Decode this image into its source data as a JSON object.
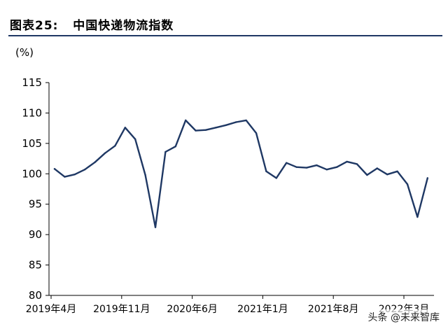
{
  "header": {
    "title": "图表25:   中国快递物流指数"
  },
  "watermark": "头条 @未来智库",
  "chart_data": {
    "type": "line",
    "title": "中国快递物流指数",
    "ylabel": "(%)",
    "xlabel": "",
    "ylim": [
      80,
      115
    ],
    "yticks": [
      80,
      85,
      90,
      95,
      100,
      105,
      110,
      115
    ],
    "grid": false,
    "legend": "none",
    "x_tick_labels": [
      "2019年4月",
      "2019年11月",
      "2020年6月",
      "2021年1月",
      "2021年8月",
      "2022年3月"
    ],
    "x_tick_indices": [
      0,
      7,
      14,
      21,
      28,
      35
    ],
    "x": [
      "2019-04",
      "2019-05",
      "2019-06",
      "2019-07",
      "2019-08",
      "2019-09",
      "2019-10",
      "2019-11",
      "2019-12",
      "2020-01",
      "2020-02",
      "2020-03",
      "2020-04",
      "2020-05",
      "2020-06",
      "2020-07",
      "2020-08",
      "2020-09",
      "2020-10",
      "2020-11",
      "2020-12",
      "2021-01",
      "2021-02",
      "2021-03",
      "2021-04",
      "2021-05",
      "2021-06",
      "2021-07",
      "2021-08",
      "2021-09",
      "2021-10",
      "2021-11",
      "2021-12",
      "2022-01",
      "2022-02",
      "2022-03",
      "2022-04",
      "2022-05"
    ],
    "series": [
      {
        "color": "#1f3864",
        "values": [
          100.8,
          99.5,
          99.9,
          100.7,
          101.9,
          103.4,
          104.6,
          107.6,
          105.7,
          99.8,
          91.2,
          103.6,
          104.5,
          108.8,
          107.1,
          107.2,
          107.6,
          108.0,
          108.5,
          108.8,
          106.7,
          100.4,
          99.3,
          101.8,
          101.1,
          101.0,
          101.4,
          100.7,
          101.1,
          102.0,
          101.6,
          99.8,
          100.9,
          99.9,
          100.4,
          98.3,
          92.9,
          99.3
        ]
      }
    ]
  }
}
